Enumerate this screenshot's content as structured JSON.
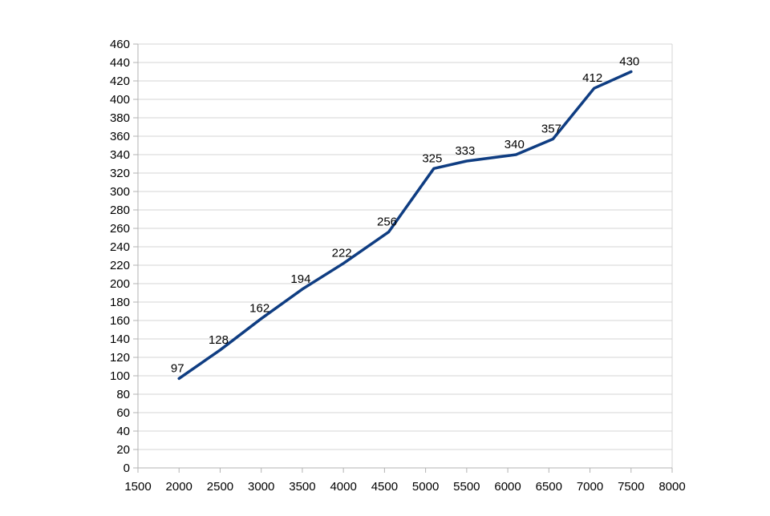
{
  "chart_data": {
    "type": "line",
    "title": "",
    "xlabel": "",
    "ylabel": "",
    "xlim": [
      1500,
      8000
    ],
    "ylim": [
      0,
      460
    ],
    "x_ticks": [
      1500,
      2000,
      2500,
      3000,
      3500,
      4000,
      4500,
      5000,
      5500,
      6000,
      6500,
      7000,
      7500,
      8000
    ],
    "y_ticks": [
      0,
      20,
      40,
      60,
      80,
      100,
      120,
      140,
      160,
      180,
      200,
      220,
      240,
      260,
      280,
      300,
      320,
      340,
      360,
      380,
      400,
      420,
      440,
      460
    ],
    "grid": "horizontal",
    "legend": "none",
    "series": [
      {
        "color": "#0f3d82",
        "x": [
          2000,
          2500,
          3000,
          3500,
          4000,
          4550,
          5100,
          5500,
          6100,
          6550,
          7050,
          7500
        ],
        "y": [
          97,
          128,
          162,
          194,
          222,
          256,
          325,
          333,
          340,
          357,
          412,
          430
        ],
        "labels": [
          "97",
          "128",
          "162",
          "194",
          "222",
          "256",
          "325",
          "333",
          "340",
          "357",
          "412",
          "430"
        ]
      }
    ]
  }
}
